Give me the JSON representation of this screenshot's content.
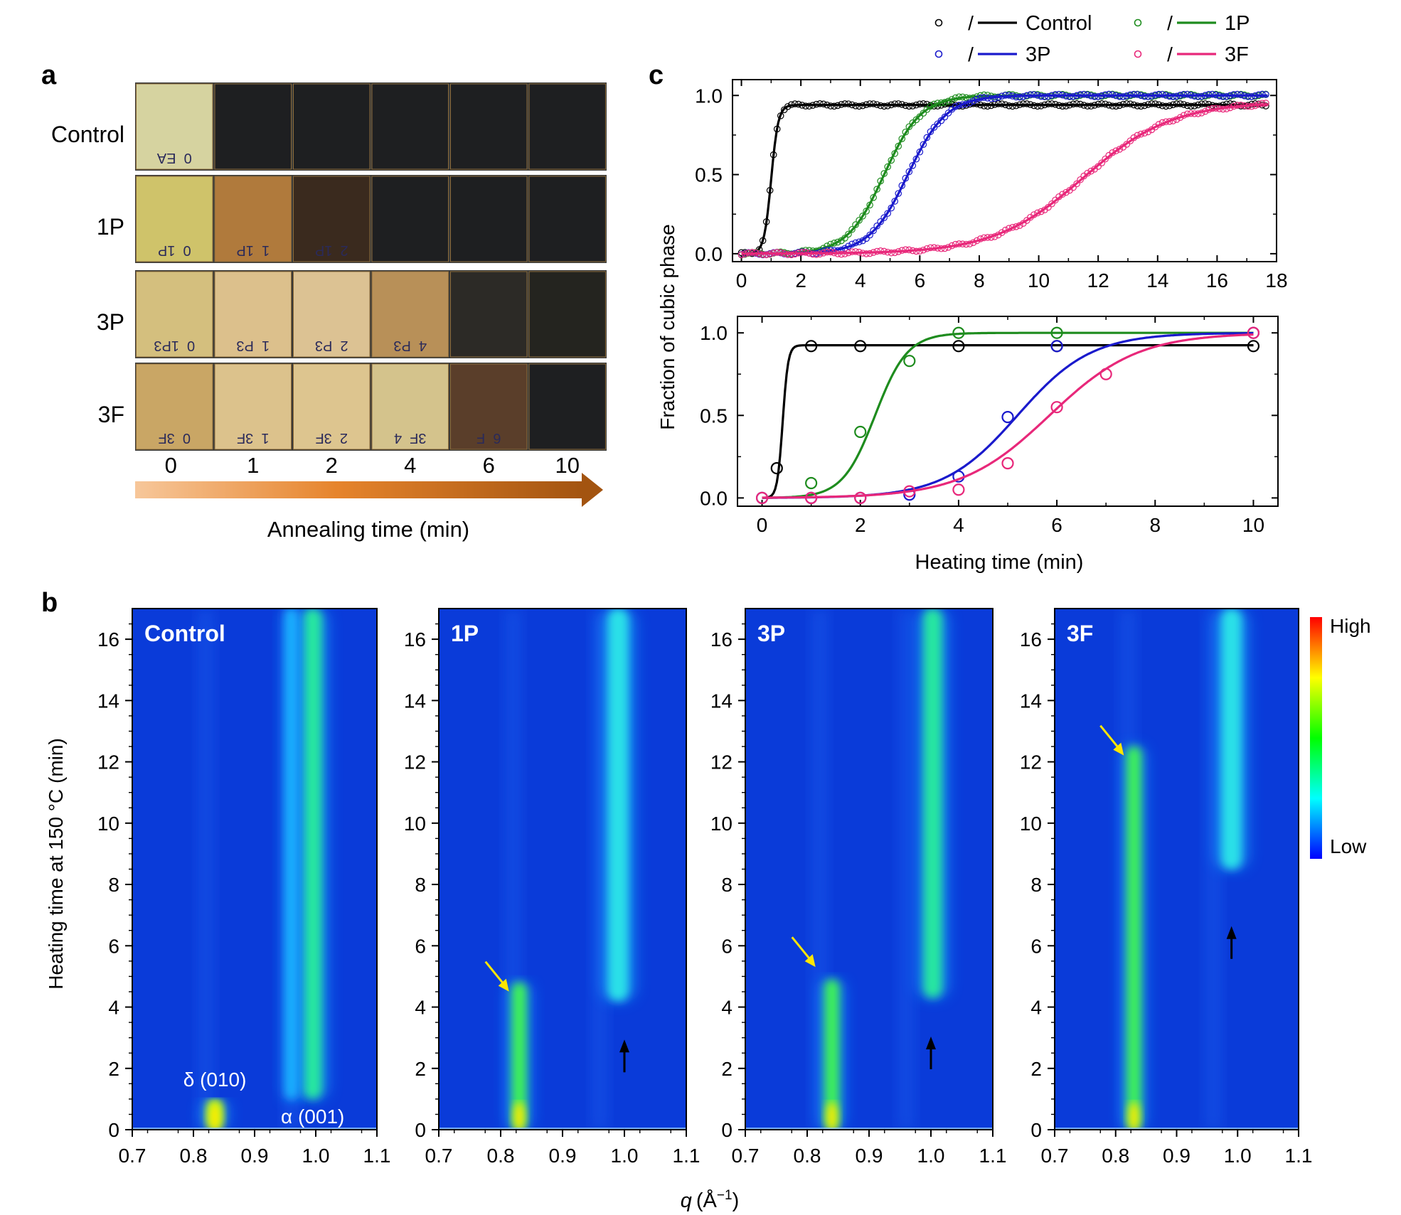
{
  "panel_a": {
    "letter": "a",
    "rows": [
      "Control",
      "1P",
      "3P",
      "3F"
    ],
    "times": [
      "0",
      "1",
      "2",
      "4",
      "6",
      "10"
    ],
    "xlabel": "Annealing time (min)",
    "sample_colors": [
      [
        "#d6d3a0",
        "#1e1f21",
        "#1e1f21",
        "#1e1f21",
        "#1e1f21",
        "#1e1f21"
      ],
      [
        "#cfc36a",
        "#b07a3c",
        "#3a2a1e",
        "#1e1f21",
        "#1e1f21",
        "#1e1f21"
      ],
      [
        "#d4bf7e",
        "#dcc08c",
        "#dcc293",
        "#b89058",
        "#2c2a26",
        "#24241f"
      ],
      [
        "#c9a665",
        "#dcc28c",
        "#ddc58f",
        "#d4c38c",
        "#5a3e2a",
        "#1e1f21"
      ]
    ],
    "sample_labels": [
      [
        "0  EA",
        "",
        "",
        "",
        "",
        ""
      ],
      [
        "0  1P",
        "1  1P",
        "2  1P",
        "",
        "",
        ""
      ],
      [
        "0  1P3",
        "1  P3",
        "2  P3",
        "4  P3",
        "",
        ""
      ],
      [
        "0  3F",
        "1  3F",
        "2  3F",
        "3F  4",
        "6  F",
        ""
      ]
    ]
  },
  "panel_c": {
    "letter": "c",
    "ylabel": "Fraction of cubic phase",
    "xlabel": "Heating time (min)",
    "legend": [
      {
        "name": "Control",
        "color": "#000000"
      },
      {
        "name": "1P",
        "color": "#1e8c1e"
      },
      {
        "name": "3P",
        "color": "#1a1acc"
      },
      {
        "name": "3F",
        "color": "#e8287a"
      }
    ],
    "legend_sep": "/"
  },
  "panel_b": {
    "letter": "b",
    "ylabel": "Heating time at 150 °C (min)",
    "xlabel": "q (Å⁻¹)",
    "xlabel_var": "q",
    "xlabel_unit": "(Å",
    "xlabel_exp": "−1",
    "xlabel_close": ")",
    "panel_names": [
      "Control",
      "1P",
      "3P",
      "3F"
    ],
    "annotations": [
      "δ (010)",
      "α (001)"
    ],
    "colorbar_high": "High",
    "colorbar_low": "Low"
  },
  "chart_data": [
    {
      "type": "scatter",
      "title": "",
      "xlabel": "",
      "ylabel": "Fraction of cubic phase",
      "xlim": [
        -0.3,
        18
      ],
      "ylim": [
        -0.05,
        1.1
      ],
      "xticks": [
        0,
        2,
        4,
        6,
        8,
        10,
        12,
        14,
        16,
        18
      ],
      "yticks": [
        0.0,
        0.5,
        1.0
      ],
      "marker": "open-circle-dense",
      "series": [
        {
          "name": "Control",
          "fit": {
            "plateau": 0.94,
            "midpoint": 1.0,
            "width": 0.12,
            "exponent": 1
          }
        },
        {
          "name": "1P",
          "fit": {
            "plateau": 1.0,
            "midpoint": 4.8,
            "width": 0.62,
            "exponent": 1
          }
        },
        {
          "name": "3P",
          "fit": {
            "plateau": 1.0,
            "midpoint": 5.6,
            "width": 0.65,
            "exponent": 1
          }
        },
        {
          "name": "3F",
          "fit": {
            "plateau": 0.96,
            "midpoint": 11.5,
            "width": 1.5,
            "exponent": 1
          }
        }
      ]
    },
    {
      "type": "scatter",
      "title": "",
      "xlabel": "Heating time (min)",
      "ylabel": "Fraction of cubic phase",
      "xlim": [
        -0.5,
        10.5
      ],
      "ylim": [
        -0.05,
        1.1
      ],
      "xticks": [
        0,
        2,
        4,
        6,
        8,
        10
      ],
      "yticks": [
        0.0,
        0.5,
        1.0
      ],
      "marker": "open-circle",
      "series": [
        {
          "name": "Control",
          "x": [
            0.3,
            1,
            2,
            4,
            6,
            10
          ],
          "y": [
            0.18,
            0.92,
            0.92,
            0.92,
            0.92,
            0.92
          ],
          "fit": {
            "plateau": 0.925,
            "midpoint": 0.42,
            "width": 0.055,
            "exponent": 1
          }
        },
        {
          "name": "1P",
          "x": [
            1,
            2,
            3,
            4,
            6
          ],
          "y": [
            0.09,
            0.4,
            0.83,
            1.0,
            1.0
          ],
          "fit": {
            "plateau": 1.0,
            "midpoint": 2.3,
            "width": 0.33,
            "exponent": 1
          }
        },
        {
          "name": "3P",
          "x": [
            0,
            1,
            2,
            3,
            4,
            5,
            6,
            10
          ],
          "y": [
            0.0,
            0.0,
            0.0,
            0.02,
            0.13,
            0.49,
            0.92,
            1.0
          ],
          "fit": {
            "plateau": 1.0,
            "midpoint": 5.2,
            "width": 0.75,
            "exponent": 1
          }
        },
        {
          "name": "3F",
          "x": [
            0,
            1,
            2,
            3,
            4,
            5,
            6,
            7,
            10
          ],
          "y": [
            0.0,
            0.0,
            0.0,
            0.04,
            0.05,
            0.21,
            0.55,
            0.75,
            1.0
          ],
          "fit": {
            "plateau": 1.0,
            "midpoint": 5.85,
            "width": 0.9,
            "exponent": 1
          }
        }
      ]
    },
    {
      "type": "heatmap",
      "title": "",
      "xlabel": "q (Å⁻¹)",
      "ylabel": "Heating time at 150 °C (min)",
      "xlim": [
        0.7,
        1.1
      ],
      "ylim": [
        0,
        17
      ],
      "xticks": [
        0.7,
        0.8,
        0.9,
        1.0,
        1.1
      ],
      "yticks": [
        0,
        2,
        4,
        6,
        8,
        10,
        12,
        14,
        16
      ],
      "colorscale": [
        "#0000ff",
        "#00ffff",
        "#00ff00",
        "#ffff00",
        "#ff0000"
      ],
      "panels": [
        {
          "name": "Control",
          "bands": [
            {
              "q": 0.835,
              "width": 0.018,
              "t_start": 0,
              "t_end": 1.0,
              "intensity": 0.95
            },
            {
              "q": 0.995,
              "width": 0.02,
              "t_start": 1.0,
              "t_end": 17,
              "intensity": 0.5
            },
            {
              "q": 0.96,
              "width": 0.012,
              "t_start": 1.0,
              "t_end": 17,
              "intensity": 0.15
            }
          ],
          "arrows": []
        },
        {
          "name": "1P",
          "bands": [
            {
              "q": 0.83,
              "width": 0.016,
              "t_start": 0,
              "t_end": 4.8,
              "intensity": 0.75
            },
            {
              "q": 0.99,
              "width": 0.022,
              "t_start": 4.2,
              "t_end": 17,
              "intensity": 0.38
            }
          ],
          "arrows": [
            {
              "color": "yellow",
              "q": 0.81,
              "t": 4.6,
              "direction": "down-right"
            },
            {
              "color": "black",
              "q": 1.0,
              "t": 2.8,
              "direction": "up"
            }
          ]
        },
        {
          "name": "3P",
          "bands": [
            {
              "q": 0.84,
              "width": 0.016,
              "t_start": 0,
              "t_end": 4.9,
              "intensity": 0.75
            },
            {
              "q": 1.003,
              "width": 0.02,
              "t_start": 4.3,
              "t_end": 17,
              "intensity": 0.5
            }
          ],
          "arrows": [
            {
              "color": "yellow",
              "q": 0.81,
              "t": 5.4,
              "direction": "down-right"
            },
            {
              "color": "black",
              "q": 1.0,
              "t": 2.9,
              "direction": "up"
            }
          ]
        },
        {
          "name": "3F",
          "bands": [
            {
              "q": 0.83,
              "width": 0.016,
              "t_start": 0,
              "t_end": 12.5,
              "intensity": 0.72
            },
            {
              "q": 0.99,
              "width": 0.022,
              "t_start": 8.5,
              "t_end": 17,
              "intensity": 0.38
            }
          ],
          "arrows": [
            {
              "color": "yellow",
              "q": 0.81,
              "t": 12.3,
              "direction": "down-right"
            },
            {
              "color": "black",
              "q": 0.99,
              "t": 6.5,
              "direction": "up"
            }
          ]
        }
      ]
    }
  ]
}
